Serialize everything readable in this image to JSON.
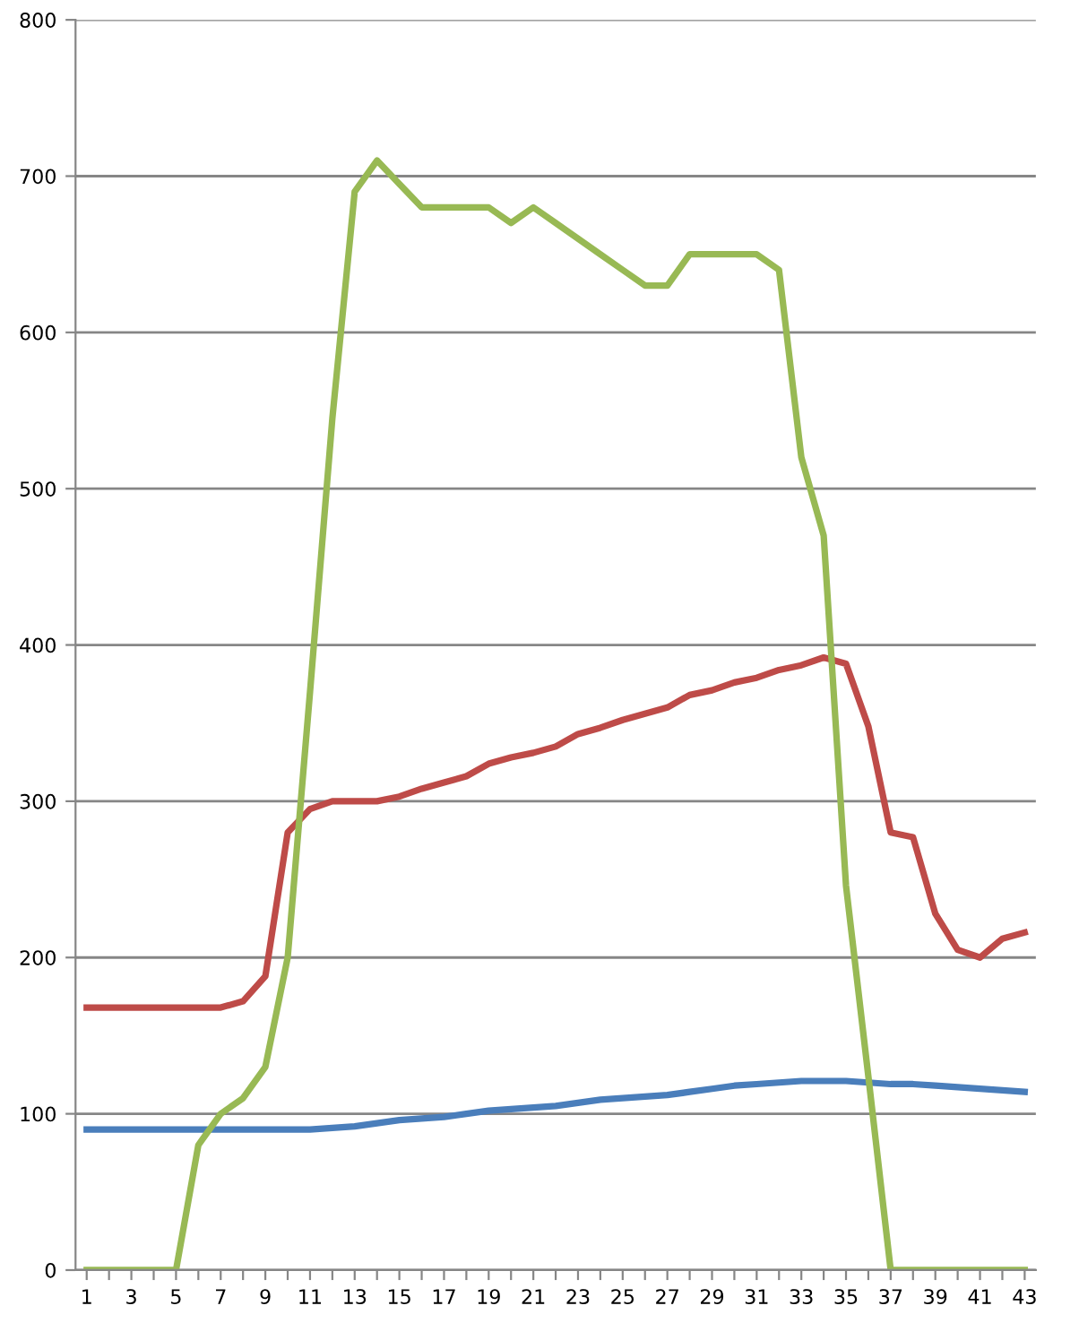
{
  "chart_data": {
    "type": "line",
    "categories": [
      "1",
      null,
      "3",
      null,
      "5",
      null,
      "7",
      null,
      "9",
      null,
      "11",
      null,
      "13",
      null,
      "15",
      null,
      "17",
      null,
      "19",
      null,
      "21",
      null,
      "23",
      null,
      "25",
      null,
      "27",
      null,
      "29",
      null,
      "31",
      null,
      "33",
      null,
      "35",
      null,
      "37",
      null,
      "39",
      null,
      "41",
      null,
      "43"
    ],
    "series": [
      {
        "color": "#4a7ebb",
        "values": [
          90,
          90,
          90,
          90,
          90,
          90,
          90,
          90,
          90,
          90,
          90,
          91,
          92,
          94,
          96,
          97,
          98,
          100,
          102,
          103,
          104,
          105,
          107,
          109,
          110,
          111,
          112,
          114,
          116,
          118,
          119,
          120,
          121,
          121,
          121,
          120,
          119,
          119,
          118,
          117,
          116,
          115,
          114
        ]
      },
      {
        "color": "#be4b48",
        "values": [
          168,
          168,
          168,
          168,
          168,
          168,
          168,
          172,
          188,
          280,
          295,
          300,
          300,
          300,
          303,
          308,
          312,
          316,
          324,
          328,
          331,
          335,
          343,
          347,
          352,
          356,
          360,
          368,
          371,
          376,
          379,
          384,
          387,
          392,
          388,
          348,
          280,
          277,
          228,
          205,
          200,
          212,
          216
        ]
      },
      {
        "color": "#98b954",
        "values": [
          0,
          0,
          0,
          0,
          0,
          80,
          100,
          110,
          130,
          200,
          370,
          545,
          690,
          710,
          695,
          680,
          680,
          680,
          680,
          670,
          680,
          670,
          660,
          650,
          640,
          630,
          630,
          650,
          650,
          650,
          650,
          640,
          520,
          470,
          246,
          124,
          0,
          0,
          0,
          0,
          0,
          0,
          0
        ]
      }
    ],
    "ylim": [
      0,
      800
    ],
    "yticks": [
      0,
      100,
      200,
      300,
      400,
      500,
      600,
      700,
      800
    ],
    "grid": "y",
    "line_style": "solid",
    "marker": "none"
  }
}
